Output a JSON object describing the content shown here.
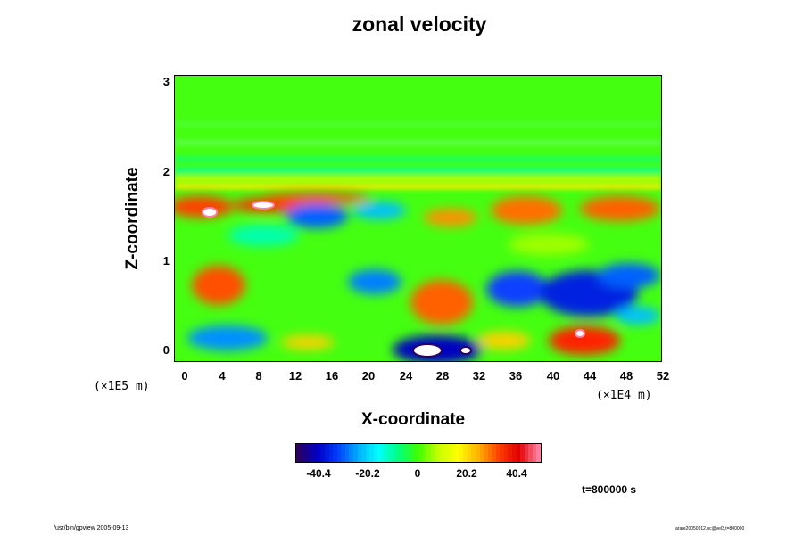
{
  "chart_data": {
    "type": "heatmap",
    "title": "zonal velocity",
    "xlabel": "X-coordinate",
    "ylabel": "Z-coordinate",
    "x_ticks": [
      "0",
      "4",
      "8",
      "12",
      "16",
      "20",
      "24",
      "28",
      "32",
      "36",
      "40",
      "44",
      "48",
      "52"
    ],
    "y_ticks": [
      "0",
      "1",
      "2",
      "3"
    ],
    "xlim": [
      0,
      52
    ],
    "ylim": [
      -0.1,
      3.0
    ],
    "x_scale_note": "(×1E4 m)",
    "y_scale_note": "(×1E5 m)",
    "colorbar": {
      "ticks": [
        "-40.4",
        "-20.2",
        "0",
        "20.2",
        "40.4"
      ],
      "tick_values": [
        -40.4,
        -20.2,
        0,
        20.2,
        40.4
      ],
      "range": [
        -50.5,
        50.5
      ],
      "colors": [
        "#2a0060",
        "#0000c8",
        "#0040ff",
        "#00b0ff",
        "#00ffff",
        "#00ff80",
        "#40ff00",
        "#c8ff00",
        "#ffff00",
        "#ffb000",
        "#ff4000",
        "#e00000",
        "#ff80a0"
      ]
    },
    "features": [
      {
        "x": 3,
        "z": 1.55,
        "value": 50
      },
      {
        "x": 8.5,
        "z": 1.63,
        "value": 45
      },
      {
        "x": 5,
        "z": 0.7,
        "value": 33
      },
      {
        "x": 27,
        "z": 0.5,
        "value": 34
      },
      {
        "x": 36,
        "z": 1.55,
        "value": 30
      },
      {
        "x": 44,
        "z": 0.15,
        "value": 38
      },
      {
        "x": 27.5,
        "z": -0.02,
        "value": -48
      },
      {
        "x": 44.5,
        "z": 0.6,
        "value": -40
      },
      {
        "x": 35.5,
        "z": 0.65,
        "value": -36
      },
      {
        "x": 20,
        "z": 0.7,
        "value": -20
      },
      {
        "x": 14,
        "z": 1.6,
        "value": -18
      }
    ]
  },
  "annotations": {
    "time": "t=800000 s"
  },
  "footer": {
    "left": "/usr/bin/gpview 2005-09-13",
    "right": "arare20050912.nc@vel3,t=800000"
  }
}
